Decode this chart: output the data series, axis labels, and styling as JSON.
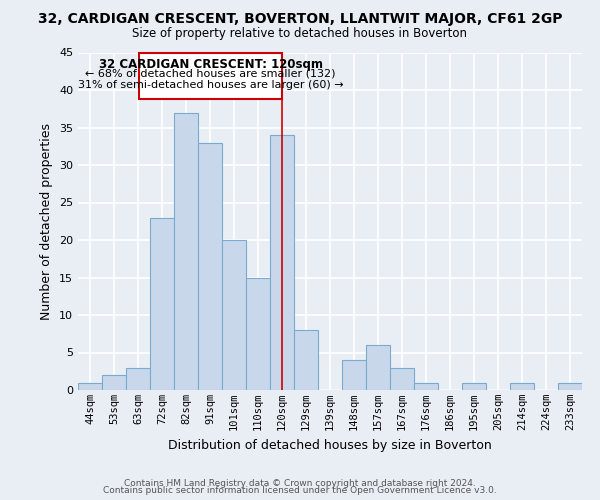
{
  "title": "32, CARDIGAN CRESCENT, BOVERTON, LLANTWIT MAJOR, CF61 2GP",
  "subtitle": "Size of property relative to detached houses in Boverton",
  "xlabel": "Distribution of detached houses by size in Boverton",
  "ylabel": "Number of detached properties",
  "bar_labels": [
    "44sqm",
    "53sqm",
    "63sqm",
    "72sqm",
    "82sqm",
    "91sqm",
    "101sqm",
    "110sqm",
    "120sqm",
    "129sqm",
    "139sqm",
    "148sqm",
    "157sqm",
    "167sqm",
    "176sqm",
    "186sqm",
    "195sqm",
    "205sqm",
    "214sqm",
    "224sqm",
    "233sqm"
  ],
  "bar_heights": [
    1,
    2,
    3,
    23,
    37,
    33,
    20,
    15,
    34,
    8,
    0,
    4,
    6,
    3,
    1,
    0,
    1,
    0,
    1,
    0,
    1
  ],
  "bar_color": "#c8d8ea",
  "bar_edge_color": "#7aaacf",
  "bar_width": 1.0,
  "vline_x_index": 8,
  "vline_color": "#cc0000",
  "ylim": [
    0,
    45
  ],
  "yticks": [
    0,
    5,
    10,
    15,
    20,
    25,
    30,
    35,
    40,
    45
  ],
  "annotation_title": "32 CARDIGAN CRESCENT: 120sqm",
  "annotation_line1": "← 68% of detached houses are smaller (132)",
  "annotation_line2": "31% of semi-detached houses are larger (60) →",
  "annotation_box_color": "#ffffff",
  "annotation_box_edge": "#cc0000",
  "footer1": "Contains HM Land Registry data © Crown copyright and database right 2024.",
  "footer2": "Contains public sector information licensed under the Open Government Licence v3.0.",
  "bg_color": "#e8eef4",
  "grid_color": "#ffffff"
}
